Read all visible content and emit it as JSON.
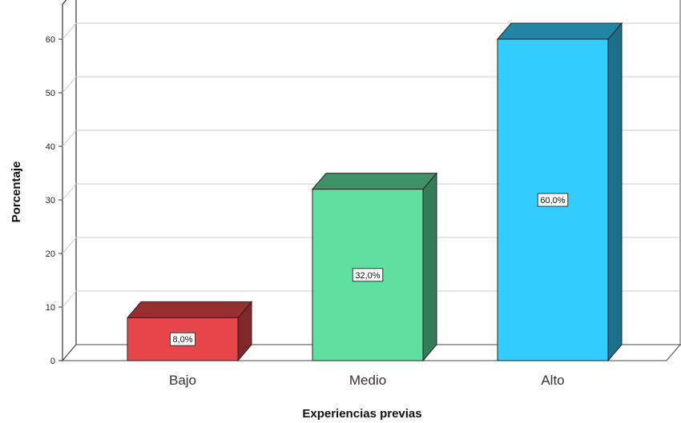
{
  "chart_data": {
    "type": "bar",
    "xlabel": "Experiencias previas",
    "ylabel": "Porcentaje",
    "categories": [
      "Bajo",
      "Medio",
      "Alto"
    ],
    "values": [
      8.0,
      32.0,
      60.0
    ],
    "data_labels": [
      "8,0%",
      "32,0%",
      "60,0%"
    ],
    "colors": [
      "#e8464a",
      "#5fe0a0",
      "#33ccff"
    ],
    "ylim": [
      0,
      60
    ],
    "yticks": [
      0,
      10,
      20,
      30,
      40,
      50,
      60
    ],
    "grid": true,
    "legend": "none",
    "style": "3d"
  }
}
